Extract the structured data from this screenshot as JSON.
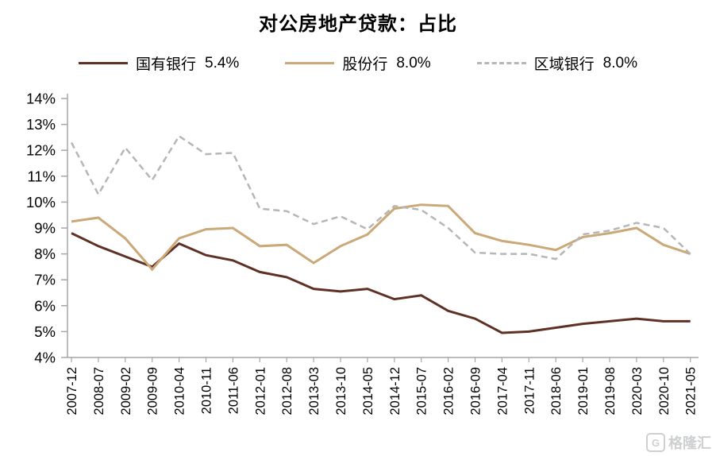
{
  "title": "对公房地产贷款：占比",
  "legend": [
    {
      "label": "国有银行",
      "value": "5.4%",
      "color": "#5f3125",
      "dash": false
    },
    {
      "label": "股份行",
      "value": "8.0%",
      "color": "#cba878",
      "dash": false
    },
    {
      "label": "区域银行",
      "value": "8.0%",
      "color": "#b5b6b8",
      "dash": true
    }
  ],
  "watermark": "格隆汇",
  "chart_data": {
    "type": "line",
    "x": [
      "2007-12",
      "2008-07",
      "2009-02",
      "2009-09",
      "2010-04",
      "2010-11",
      "2011-06",
      "2012-01",
      "2012-08",
      "2013-03",
      "2013-10",
      "2014-05",
      "2014-12",
      "2015-07",
      "2016-02",
      "2016-09",
      "2017-04",
      "2017-11",
      "2018-06",
      "2019-01",
      "2019-08",
      "2020-03",
      "2020-10",
      "2021-05"
    ],
    "series": [
      {
        "name": "国有银行",
        "color": "#5f3125",
        "width": 3,
        "dash": null,
        "values": [
          8.8,
          8.3,
          7.9,
          7.5,
          8.4,
          7.95,
          7.75,
          7.3,
          7.1,
          6.65,
          6.55,
          6.65,
          6.25,
          6.4,
          5.8,
          5.5,
          4.95,
          5.0,
          5.15,
          5.3,
          5.4,
          5.5,
          5.4,
          5.4
        ]
      },
      {
        "name": "股份行",
        "color": "#cba878",
        "width": 3,
        "dash": null,
        "values": [
          9.25,
          9.4,
          8.6,
          7.4,
          8.6,
          8.95,
          9.0,
          8.3,
          8.35,
          7.65,
          8.3,
          8.75,
          9.75,
          9.9,
          9.85,
          8.8,
          8.5,
          8.35,
          8.15,
          8.65,
          8.8,
          9.0,
          8.35,
          8.0
        ]
      },
      {
        "name": "区域银行",
        "color": "#b5b6b8",
        "width": 2.5,
        "dash": "8 5",
        "values": [
          12.3,
          10.3,
          12.1,
          10.85,
          12.55,
          11.85,
          11.9,
          9.75,
          9.65,
          9.15,
          9.45,
          8.95,
          9.85,
          9.7,
          9.0,
          8.05,
          8.0,
          8.0,
          7.8,
          8.75,
          8.9,
          9.2,
          9.0,
          8.0
        ]
      }
    ],
    "ylim": [
      4,
      14
    ],
    "ytick_step": 1,
    "ytick_suffix": "%",
    "grid": false,
    "legend_position": "top",
    "axis_color": "#a6a6a6"
  }
}
